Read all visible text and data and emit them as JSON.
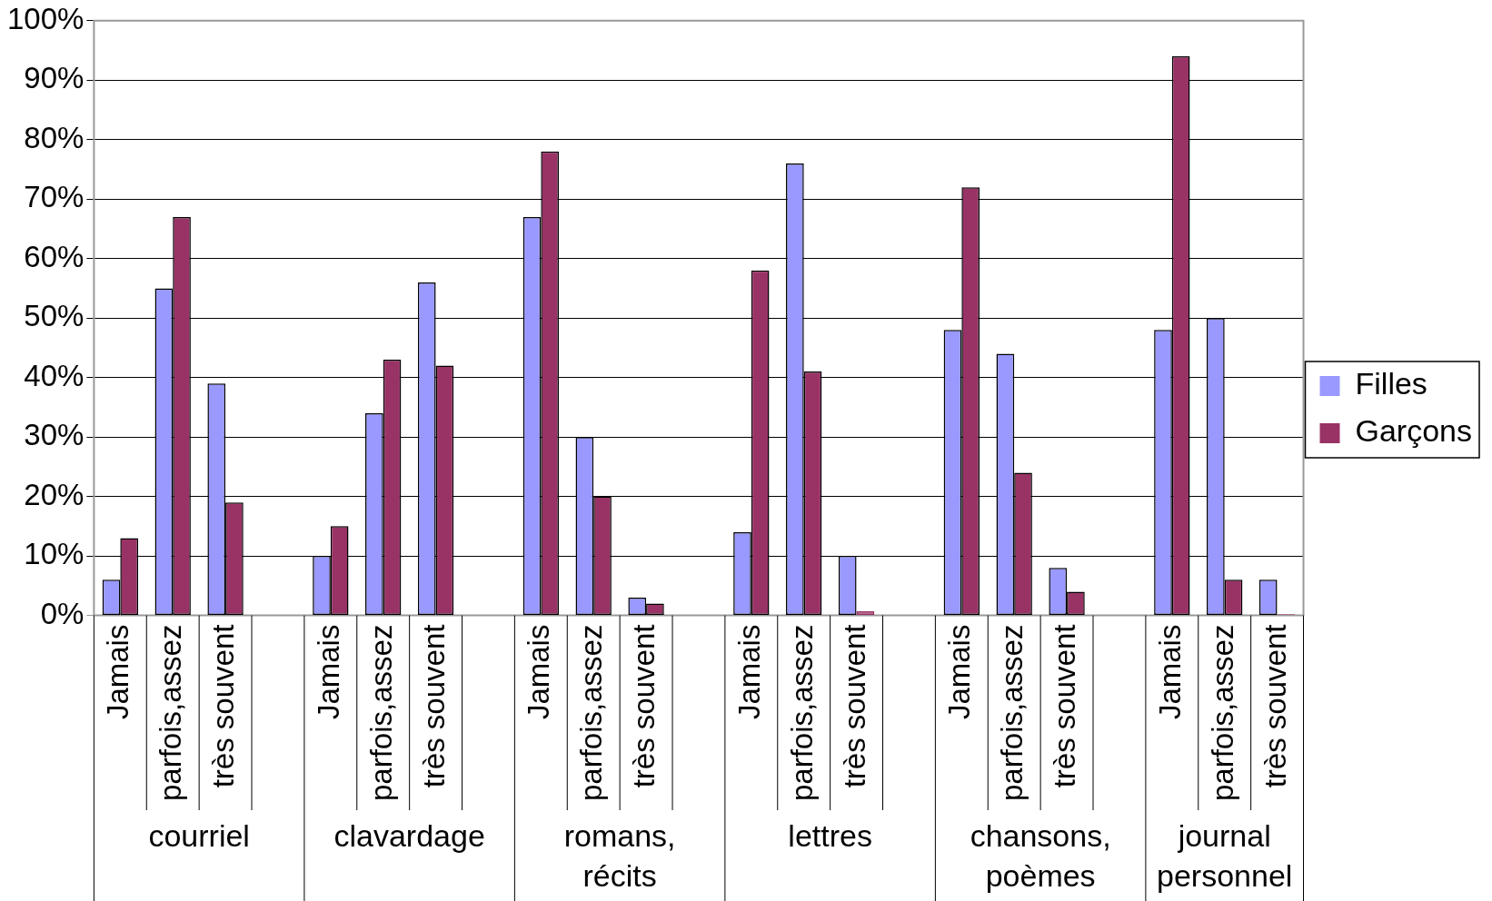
{
  "chart_data": {
    "type": "bar",
    "categories": [
      "Jamais",
      "parfois,assez",
      "très souvent",
      null,
      "Jamais",
      "parfois,assez",
      "très souvent",
      null,
      "Jamais",
      "parfois,assez",
      "très souvent",
      null,
      "Jamais",
      "parfois,assez",
      "très souvent",
      null,
      "Jamais",
      "parfois,assez",
      "très souvent",
      null,
      "Jamais",
      "parfois,assez",
      "très souvent"
    ],
    "series": [
      {
        "name": "Filles",
        "color": "#9999ff",
        "values": [
          6,
          55,
          39,
          null,
          10,
          34,
          56,
          null,
          67,
          30,
          3,
          null,
          14,
          76,
          10,
          null,
          48,
          44,
          8,
          null,
          48,
          50,
          6
        ]
      },
      {
        "name": "Garçons",
        "color": "#993366",
        "values": [
          13,
          67,
          19,
          null,
          15,
          43,
          42,
          null,
          78,
          20,
          2,
          null,
          58,
          41,
          0.7,
          null,
          72,
          24,
          4,
          null,
          94,
          6,
          0.2
        ]
      }
    ],
    "annotations": [
      "courriel",
      "clavardage",
      "romans, récits",
      "lettres",
      "chansons, poèmes",
      "journal personnel"
    ],
    "ylim": [
      0,
      100
    ],
    "yticks": [
      {
        "value": 0,
        "label": "0%"
      },
      {
        "value": 10,
        "label": "10%"
      },
      {
        "value": 20,
        "label": "20%"
      },
      {
        "value": 30,
        "label": "30%"
      },
      {
        "value": 40,
        "label": "40%"
      },
      {
        "value": 50,
        "label": "50%"
      },
      {
        "value": 60,
        "label": "60%"
      },
      {
        "value": 70,
        "label": "70%"
      },
      {
        "value": 80,
        "label": "80%"
      },
      {
        "value": 90,
        "label": "90%"
      },
      {
        "value": 100,
        "label": "100%"
      }
    ],
    "grid": "y",
    "legend": "right"
  }
}
